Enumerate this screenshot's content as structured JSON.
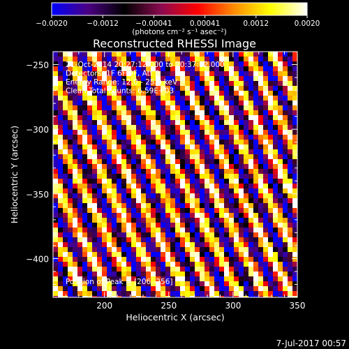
{
  "chart_data": {
    "type": "heatmap",
    "title": "Reconstructed RHESSI Image",
    "xlabel": "Heliocentric X (arcsec)",
    "ylabel": "Heliocentric Y (arcsec)",
    "xlim": [
      160,
      350
    ],
    "ylim": [
      -430,
      -240
    ],
    "x_ticks": [
      {
        "value": 200,
        "label": "200"
      },
      {
        "value": 250,
        "label": "250"
      },
      {
        "value": 300,
        "label": "300"
      },
      {
        "value": 350,
        "label": "350"
      }
    ],
    "y_ticks": [
      {
        "value": -250,
        "label": "−250"
      },
      {
        "value": -300,
        "label": "−300"
      },
      {
        "value": -350,
        "label": "−350"
      },
      {
        "value": -400,
        "label": "−400"
      }
    ],
    "colorbar": {
      "range": [
        -0.002,
        0.002
      ],
      "tick_labels": [
        "−0.0020",
        "−0.0012",
        "−0.00041",
        "0.00041",
        "0.0012",
        "0.0020"
      ],
      "unit_label": "(photons cm⁻² s⁻¹ asec⁻²)",
      "colormap": [
        "#0000ff",
        "#4b0082",
        "#000000",
        "#8b0a50",
        "#ff0000",
        "#ff8c00",
        "#ffff00",
        "#ffffff"
      ]
    },
    "pattern": {
      "description_in_data_units": "diagonal stripes",
      "stripe_period_arcsec": 20,
      "stripe_slope": 2.0
    },
    "annotations": [
      "21-Oct-2014 20:27:12.000 to 20:37:12.000",
      "Detectors: 1F 6F 9F, Att 0",
      "Energy Range: 12.0 - 25.0 keV",
      "Clean    Total counts: 6.59E+03"
    ],
    "peak_annotation": "Position of Peak = [206,-256]"
  },
  "footer": {
    "timestamp": "7-Jul-2017 00:57"
  }
}
